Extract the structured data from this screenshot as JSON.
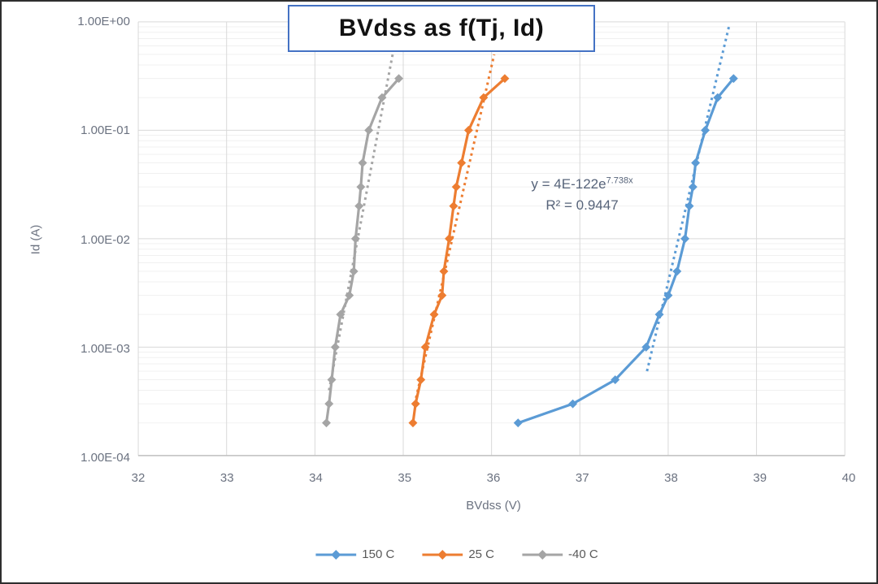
{
  "chart_data": {
    "type": "line",
    "title": "BVdss as f(Tj, Id)",
    "xlabel": "BVdss (V)",
    "ylabel": "Id (A)",
    "x_axis": {
      "min": 32,
      "max": 40,
      "ticks": [
        32,
        33,
        34,
        35,
        36,
        37,
        38,
        39,
        40
      ]
    },
    "y_axis": {
      "scale": "log",
      "min": 0.0001,
      "max": 1,
      "tick_values": [
        1,
        0.1,
        0.01,
        0.001,
        0.0001
      ],
      "tick_labels": [
        "1.00E+00",
        "1.00E-01",
        "1.00E-02",
        "1.00E-03",
        "1.00E-04"
      ]
    },
    "grid": {
      "major": true,
      "minor": true,
      "major_color": "#d9d9d9",
      "minor_color": "#f0f0f0",
      "axis_line_color": "#bfbfbf"
    },
    "legend_position": "bottom",
    "series": [
      {
        "name": "150 C",
        "color": "#5B9BD5",
        "marker": "diamond",
        "points": [
          [
            36.3,
            0.0002
          ],
          [
            36.92,
            0.0003
          ],
          [
            37.4,
            0.0005
          ],
          [
            37.75,
            0.001
          ],
          [
            37.9,
            0.002
          ],
          [
            38.0,
            0.003
          ],
          [
            38.1,
            0.005
          ],
          [
            38.19,
            0.01
          ],
          [
            38.24,
            0.02
          ],
          [
            38.28,
            0.03
          ],
          [
            38.31,
            0.05
          ],
          [
            38.42,
            0.1
          ],
          [
            38.56,
            0.2
          ],
          [
            38.74,
            0.3
          ]
        ]
      },
      {
        "name": "25 C",
        "color": "#ED7D31",
        "marker": "diamond",
        "points": [
          [
            35.11,
            0.0002
          ],
          [
            35.14,
            0.0003
          ],
          [
            35.2,
            0.0005
          ],
          [
            35.25,
            0.001
          ],
          [
            35.35,
            0.002
          ],
          [
            35.44,
            0.003
          ],
          [
            35.46,
            0.005
          ],
          [
            35.52,
            0.01
          ],
          [
            35.57,
            0.02
          ],
          [
            35.6,
            0.03
          ],
          [
            35.66,
            0.05
          ],
          [
            35.74,
            0.1
          ],
          [
            35.91,
            0.2
          ],
          [
            36.15,
            0.3
          ]
        ]
      },
      {
        "name": "-40 C",
        "color": "#A5A5A5",
        "marker": "diamond",
        "points": [
          [
            34.13,
            0.0002
          ],
          [
            34.16,
            0.0003
          ],
          [
            34.19,
            0.0005
          ],
          [
            34.23,
            0.001
          ],
          [
            34.29,
            0.002
          ],
          [
            34.39,
            0.003
          ],
          [
            34.44,
            0.005
          ],
          [
            34.46,
            0.01
          ],
          [
            34.5,
            0.02
          ],
          [
            34.52,
            0.03
          ],
          [
            34.54,
            0.05
          ],
          [
            34.61,
            0.1
          ],
          [
            34.76,
            0.2
          ],
          [
            34.95,
            0.3
          ]
        ]
      }
    ],
    "trendlines": [
      {
        "series": "150 C",
        "color": "#5B9BD5",
        "style": "dotted",
        "from": [
          37.76,
          0.0006
        ],
        "to": [
          38.69,
          0.92
        ]
      },
      {
        "series": "25 C",
        "color": "#ED7D31",
        "style": "dotted",
        "from": [
          35.13,
          0.0003
        ],
        "to": [
          36.03,
          0.5
        ]
      },
      {
        "series": "-40 C",
        "color": "#A5A5A5",
        "style": "dotted",
        "from": [
          34.16,
          0.0004
        ],
        "to": [
          34.88,
          0.5
        ]
      }
    ],
    "annotation": {
      "equation_base": "y = 4E-122e",
      "equation_exponent": "7.738x",
      "r_squared": "R² = 0.9447"
    }
  }
}
